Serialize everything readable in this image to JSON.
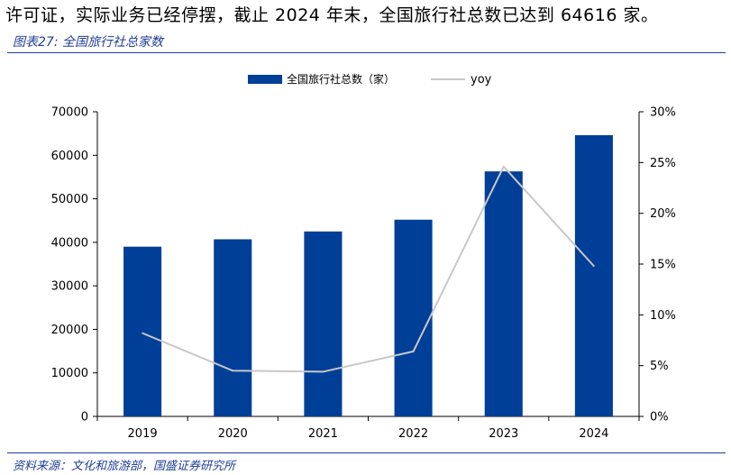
{
  "header_text": "许可证，实际业务已经停摆，截止 2024 年末，全国旅行社总数已达到 64616 家。",
  "figure_title": "图表27: 全国旅行社总家数",
  "source": "资料来源：文化和旅游部，国盛证券研究所",
  "colors": {
    "bar": "#003f98",
    "line": "#c8c8c8",
    "accent": "#1f3d99"
  },
  "chart_data": {
    "type": "bar+line",
    "categories": [
      "2019",
      "2020",
      "2021",
      "2022",
      "2023",
      "2024"
    ],
    "series": [
      {
        "name": "全国旅行社总数（家）",
        "type": "bar",
        "axis": "left",
        "values": [
          39000,
          40700,
          42500,
          45200,
          56300,
          64616
        ]
      },
      {
        "name": "yoy",
        "type": "line",
        "axis": "right",
        "values": [
          8.2,
          4.5,
          4.4,
          6.4,
          24.6,
          14.8
        ]
      }
    ],
    "left_axis": {
      "min": 0,
      "max": 70000,
      "ticks": [
        "0",
        "10000",
        "20000",
        "30000",
        "40000",
        "50000",
        "60000",
        "70000"
      ]
    },
    "right_axis": {
      "min": 0,
      "max": 30,
      "ticks": [
        "0%",
        "5%",
        "10%",
        "15%",
        "20%",
        "25%",
        "30%"
      ]
    },
    "legend": {
      "placement": "top-center",
      "bar_label": "全国旅行社总数（家）",
      "line_label": "yoy"
    },
    "grid": false
  }
}
